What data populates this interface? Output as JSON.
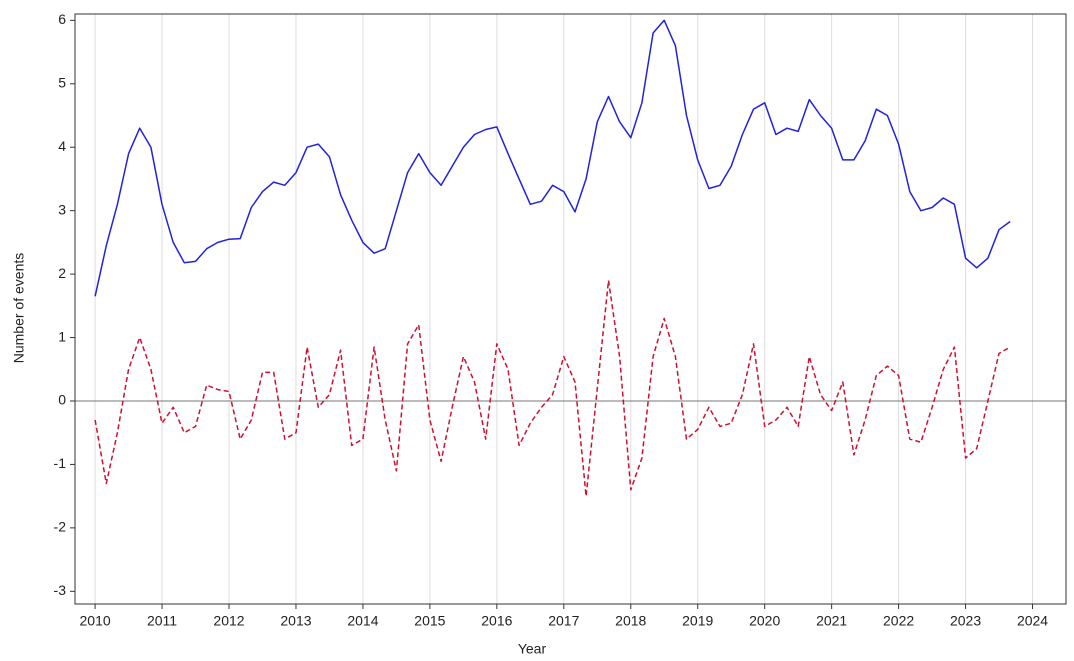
{
  "chart_data": {
    "type": "line",
    "xlabel": "Year",
    "ylabel": "Number of events",
    "xlim": [
      2009.7,
      2024.5
    ],
    "ylim": [
      -3.2,
      6.1
    ],
    "xticks": [
      2010,
      2011,
      2012,
      2013,
      2014,
      2015,
      2016,
      2017,
      2018,
      2019,
      2020,
      2021,
      2022,
      2023,
      2024
    ],
    "yticks": [
      -3,
      -2,
      -1,
      0,
      1,
      2,
      3,
      4,
      5,
      6
    ],
    "x_grid": true,
    "hline": 0,
    "x": [
      2010,
      2010.167,
      2010.333,
      2010.5,
      2010.667,
      2010.833,
      2011,
      2011.167,
      2011.333,
      2011.5,
      2011.667,
      2011.833,
      2012,
      2012.167,
      2012.333,
      2012.5,
      2012.667,
      2012.833,
      2013,
      2013.167,
      2013.333,
      2013.5,
      2013.667,
      2013.833,
      2014,
      2014.167,
      2014.333,
      2014.5,
      2014.667,
      2014.833,
      2015,
      2015.167,
      2015.333,
      2015.5,
      2015.667,
      2015.833,
      2016,
      2016.167,
      2016.333,
      2016.5,
      2016.667,
      2016.833,
      2017,
      2017.167,
      2017.333,
      2017.5,
      2017.667,
      2017.833,
      2018,
      2018.167,
      2018.333,
      2018.5,
      2018.667,
      2018.833,
      2019,
      2019.167,
      2019.333,
      2019.5,
      2019.667,
      2019.833,
      2020,
      2020.167,
      2020.333,
      2020.5,
      2020.667,
      2020.833,
      2021,
      2021.167,
      2021.333,
      2021.5,
      2021.667,
      2021.833,
      2022,
      2022.167,
      2022.333,
      2022.5,
      2022.667,
      2022.833,
      2023,
      2023.167,
      2023.333,
      2023.5,
      2023.667
    ],
    "series": [
      {
        "color": "#2222dd",
        "dash": "solid",
        "values": [
          1.65,
          2.45,
          3.1,
          3.9,
          4.3,
          4.0,
          3.1,
          2.5,
          2.18,
          2.2,
          2.4,
          2.5,
          2.55,
          2.56,
          3.05,
          3.3,
          3.45,
          3.4,
          3.6,
          4.0,
          4.05,
          3.85,
          3.25,
          2.85,
          2.5,
          2.33,
          2.4,
          3.0,
          3.6,
          3.9,
          3.6,
          3.4,
          3.7,
          4.0,
          4.2,
          4.28,
          4.32,
          3.9,
          3.5,
          3.1,
          3.15,
          3.4,
          3.3,
          2.98,
          3.5,
          4.4,
          4.8,
          4.4,
          4.15,
          4.7,
          5.8,
          6.0,
          5.6,
          4.5,
          3.8,
          3.35,
          3.4,
          3.7,
          4.2,
          4.6,
          4.7,
          4.2,
          4.3,
          4.25,
          4.75,
          4.5,
          4.3,
          3.8,
          3.8,
          4.1,
          4.6,
          4.5,
          4.05,
          3.3,
          3.0,
          3.05,
          3.2,
          3.1,
          2.25,
          2.1,
          2.25,
          2.7,
          2.83
        ]
      },
      {
        "color": "#cc1133",
        "dash": "dashed",
        "values": [
          -0.3,
          -1.3,
          -0.5,
          0.5,
          1.0,
          0.5,
          -0.35,
          -0.1,
          -0.5,
          -0.4,
          0.25,
          0.18,
          0.15,
          -0.6,
          -0.3,
          0.45,
          0.45,
          -0.6,
          -0.5,
          0.85,
          -0.1,
          0.1,
          0.8,
          -0.7,
          -0.6,
          0.85,
          -0.3,
          -1.1,
          0.9,
          1.2,
          -0.3,
          -0.95,
          -0.1,
          0.7,
          0.3,
          -0.6,
          0.9,
          0.5,
          -0.7,
          -0.35,
          -0.1,
          0.1,
          0.7,
          0.3,
          -1.5,
          0.2,
          1.9,
          0.7,
          -1.4,
          -0.9,
          0.7,
          1.3,
          0.7,
          -0.6,
          -0.45,
          -0.1,
          -0.4,
          -0.35,
          0.1,
          0.9,
          -0.4,
          -0.3,
          -0.1,
          -0.4,
          0.7,
          0.1,
          -0.15,
          0.3,
          -0.85,
          -0.3,
          0.4,
          0.55,
          0.4,
          -0.6,
          -0.65,
          -0.1,
          0.5,
          0.85,
          -0.9,
          -0.75,
          0.0,
          0.75,
          0.85
        ]
      }
    ]
  }
}
